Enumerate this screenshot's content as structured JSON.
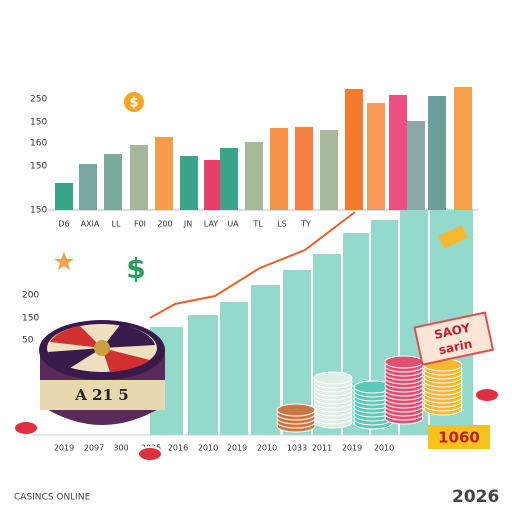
{
  "top_chart": {
    "y_labels": [
      "250",
      "150",
      "160",
      "150",
      "150"
    ],
    "x_labels": [
      "D6",
      "AXIA",
      "LL",
      "F0I",
      "200",
      "JN",
      "LAY",
      "UA",
      "TL",
      "LS",
      "TY"
    ]
  },
  "bottom_chart": {
    "y_labels": [
      "200",
      "150",
      "50"
    ],
    "x_labels": [
      "2019",
      "2097",
      "300",
      "2025",
      "2016",
      "2010",
      "2019",
      "2010",
      "1033",
      "2011",
      "2019",
      "2010"
    ]
  },
  "wheel_label": "A 21 5",
  "sign": [
    "SAOY",
    "sarin"
  ],
  "badge": "1060",
  "footer": "CASINCS ONLINE",
  "year": "2026"
}
